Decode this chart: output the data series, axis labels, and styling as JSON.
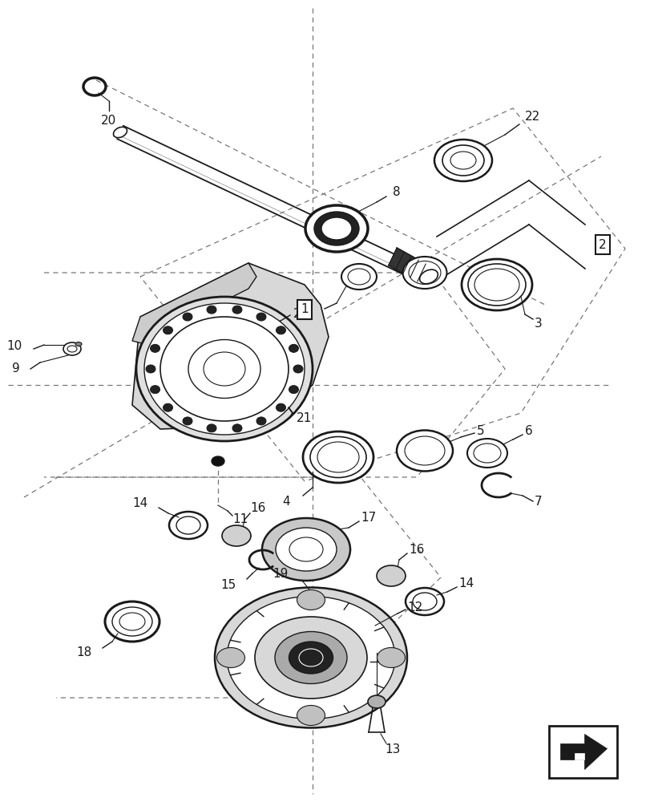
{
  "bg_color": "#ffffff",
  "line_color": "#1a1a1a",
  "dashed_color": "#777777",
  "label_color": "#111111",
  "fig_width": 8.12,
  "fig_height": 10.0,
  "dpi": 100
}
